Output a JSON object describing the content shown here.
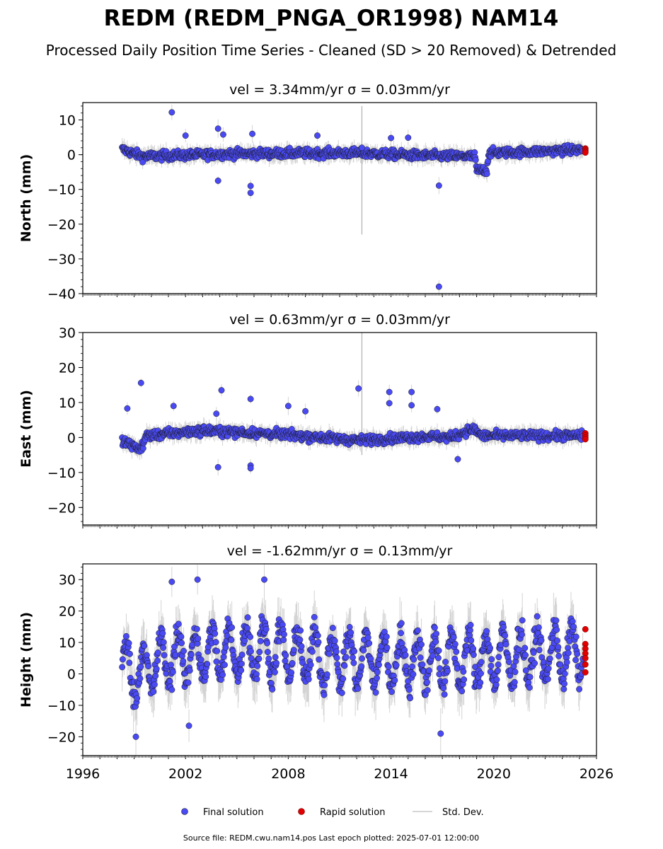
{
  "figure": {
    "title": "REDM (REDM_PNGA_OR1998) NAM14",
    "subtitle": "Processed Daily Position Time Series - Cleaned (SD > 20 Removed) & Detrended",
    "footer": "Source file: REDM.cwu.nam14.pos  Last epoch plotted: 2025-07-01 12:00:00"
  },
  "legend": {
    "final": "Final solution",
    "rapid": "Rapid solution",
    "stddev": "Std. Dev."
  },
  "colors": {
    "final": "#4a4af4",
    "rapid": "#e00000",
    "stddev": "#b0b0b0",
    "marker_edge": "#1a1a1a"
  },
  "chart_data": [
    {
      "type": "scatter",
      "title": "vel = 3.34mm/yr   σ = 0.03mm/yr",
      "ylabel": "North (mm)",
      "xlim": [
        1996,
        2026
      ],
      "ylim": [
        -40,
        15
      ],
      "yticks": [
        "10",
        "0",
        "−10",
        "−20",
        "−30",
        "−40"
      ],
      "x_range": [
        1998.3,
        2025.2
      ],
      "baseline": [
        [
          1998.3,
          1.5
        ],
        [
          1999.5,
          -0.5
        ],
        [
          2005,
          0.3
        ],
        [
          2012,
          0.5
        ],
        [
          2016,
          -0.3
        ],
        [
          2018.9,
          -0.5
        ],
        [
          2019.0,
          -4.5
        ],
        [
          2019.6,
          -4.5
        ],
        [
          2019.7,
          0.5
        ],
        [
          2023,
          1.0
        ],
        [
          2025.2,
          1.5
        ]
      ],
      "scatter_amp": 1.3,
      "outliers": [
        [
          2001.2,
          12.2
        ],
        [
          2002,
          5.5
        ],
        [
          2003.9,
          7.5
        ],
        [
          2004.2,
          5.8
        ],
        [
          2003.9,
          -7.5
        ],
        [
          2005.8,
          -9
        ],
        [
          2005.8,
          -11
        ],
        [
          2005.9,
          6
        ],
        [
          2009.7,
          5.5
        ],
        [
          2014,
          4.8
        ],
        [
          2015,
          4.9
        ],
        [
          2016.8,
          -8.9
        ],
        [
          2016.8,
          -38
        ],
        [
          2012.3,
          2.0
        ]
      ],
      "rapid": {
        "x": 2025.35,
        "values": [
          1.8,
          1.4,
          1.0,
          0.6
        ]
      }
    },
    {
      "type": "scatter",
      "title": "vel = 0.63mm/yr   σ = 0.03mm/yr",
      "ylabel": "East (mm)",
      "xlim": [
        1996,
        2026
      ],
      "ylim": [
        -25,
        30
      ],
      "yticks": [
        "30",
        "20",
        "10",
        "0",
        "−10",
        "−20"
      ],
      "x_range": [
        1998.3,
        2025.2
      ],
      "baseline": [
        [
          1998.3,
          -1.0
        ],
        [
          1999.0,
          -2.5
        ],
        [
          1999.4,
          -3.5
        ],
        [
          1999.7,
          0.5
        ],
        [
          2003,
          2.0
        ],
        [
          2008,
          0.8
        ],
        [
          2012,
          -0.8
        ],
        [
          2016,
          0.3
        ],
        [
          2017.5,
          0.0
        ],
        [
          2018.8,
          2.5
        ],
        [
          2019.3,
          0.5
        ],
        [
          2025.2,
          0.5
        ]
      ],
      "scatter_amp": 1.3,
      "outliers": [
        [
          1999.4,
          15.6
        ],
        [
          1998.6,
          8.3
        ],
        [
          2001.3,
          9.0
        ],
        [
          2003.8,
          6.8
        ],
        [
          2004.1,
          13.5
        ],
        [
          2005.8,
          11.0
        ],
        [
          2005.8,
          -8.0
        ],
        [
          2005.8,
          -8.8
        ],
        [
          2003.9,
          -8.5
        ],
        [
          2012.1,
          14.0
        ],
        [
          2013.9,
          13.0
        ],
        [
          2013.9,
          9.8
        ],
        [
          2015.2,
          13.0
        ],
        [
          2015.2,
          9.2
        ],
        [
          2016.7,
          8.1
        ],
        [
          2017.9,
          -6.2
        ],
        [
          2008.0,
          9.0
        ],
        [
          2009.0,
          7.5
        ]
      ],
      "rapid": {
        "x": 2025.35,
        "values": [
          1.2,
          0.6,
          0.0,
          -0.5
        ]
      }
    },
    {
      "type": "scatter",
      "title": "vel = -1.62mm/yr   σ = 0.13mm/yr",
      "ylabel": "Height (mm)",
      "xlim": [
        1996,
        2026
      ],
      "ylim": [
        -26,
        35
      ],
      "yticks": [
        "30",
        "20",
        "10",
        "0",
        "−10",
        "−20"
      ],
      "x_range": [
        1998.3,
        2025.2
      ],
      "baseline": [
        [
          1998.3,
          2.0
        ],
        [
          1999.2,
          0.0
        ],
        [
          2001,
          5.0
        ],
        [
          2006,
          8.0
        ],
        [
          2010,
          5.0
        ],
        [
          2016,
          4.0
        ],
        [
          2020,
          5.0
        ],
        [
          2025.2,
          7.0
        ]
      ],
      "scatter_amp": 9.0,
      "outliers": [
        [
          2002.7,
          30.0
        ],
        [
          2006.6,
          30.0
        ],
        [
          2001.2,
          29.3
        ],
        [
          2016.9,
          -19.0
        ],
        [
          2002.2,
          -16.5
        ],
        [
          1999.1,
          -20.0
        ]
      ],
      "rapid": {
        "x": 2025.35,
        "values": [
          14.2,
          9.5,
          8.0,
          6.5,
          5.0,
          3.0,
          0.5
        ]
      }
    }
  ],
  "xaxis": {
    "ticks": [
      "1996",
      "2002",
      "2008",
      "2014",
      "2020",
      "2026"
    ]
  }
}
